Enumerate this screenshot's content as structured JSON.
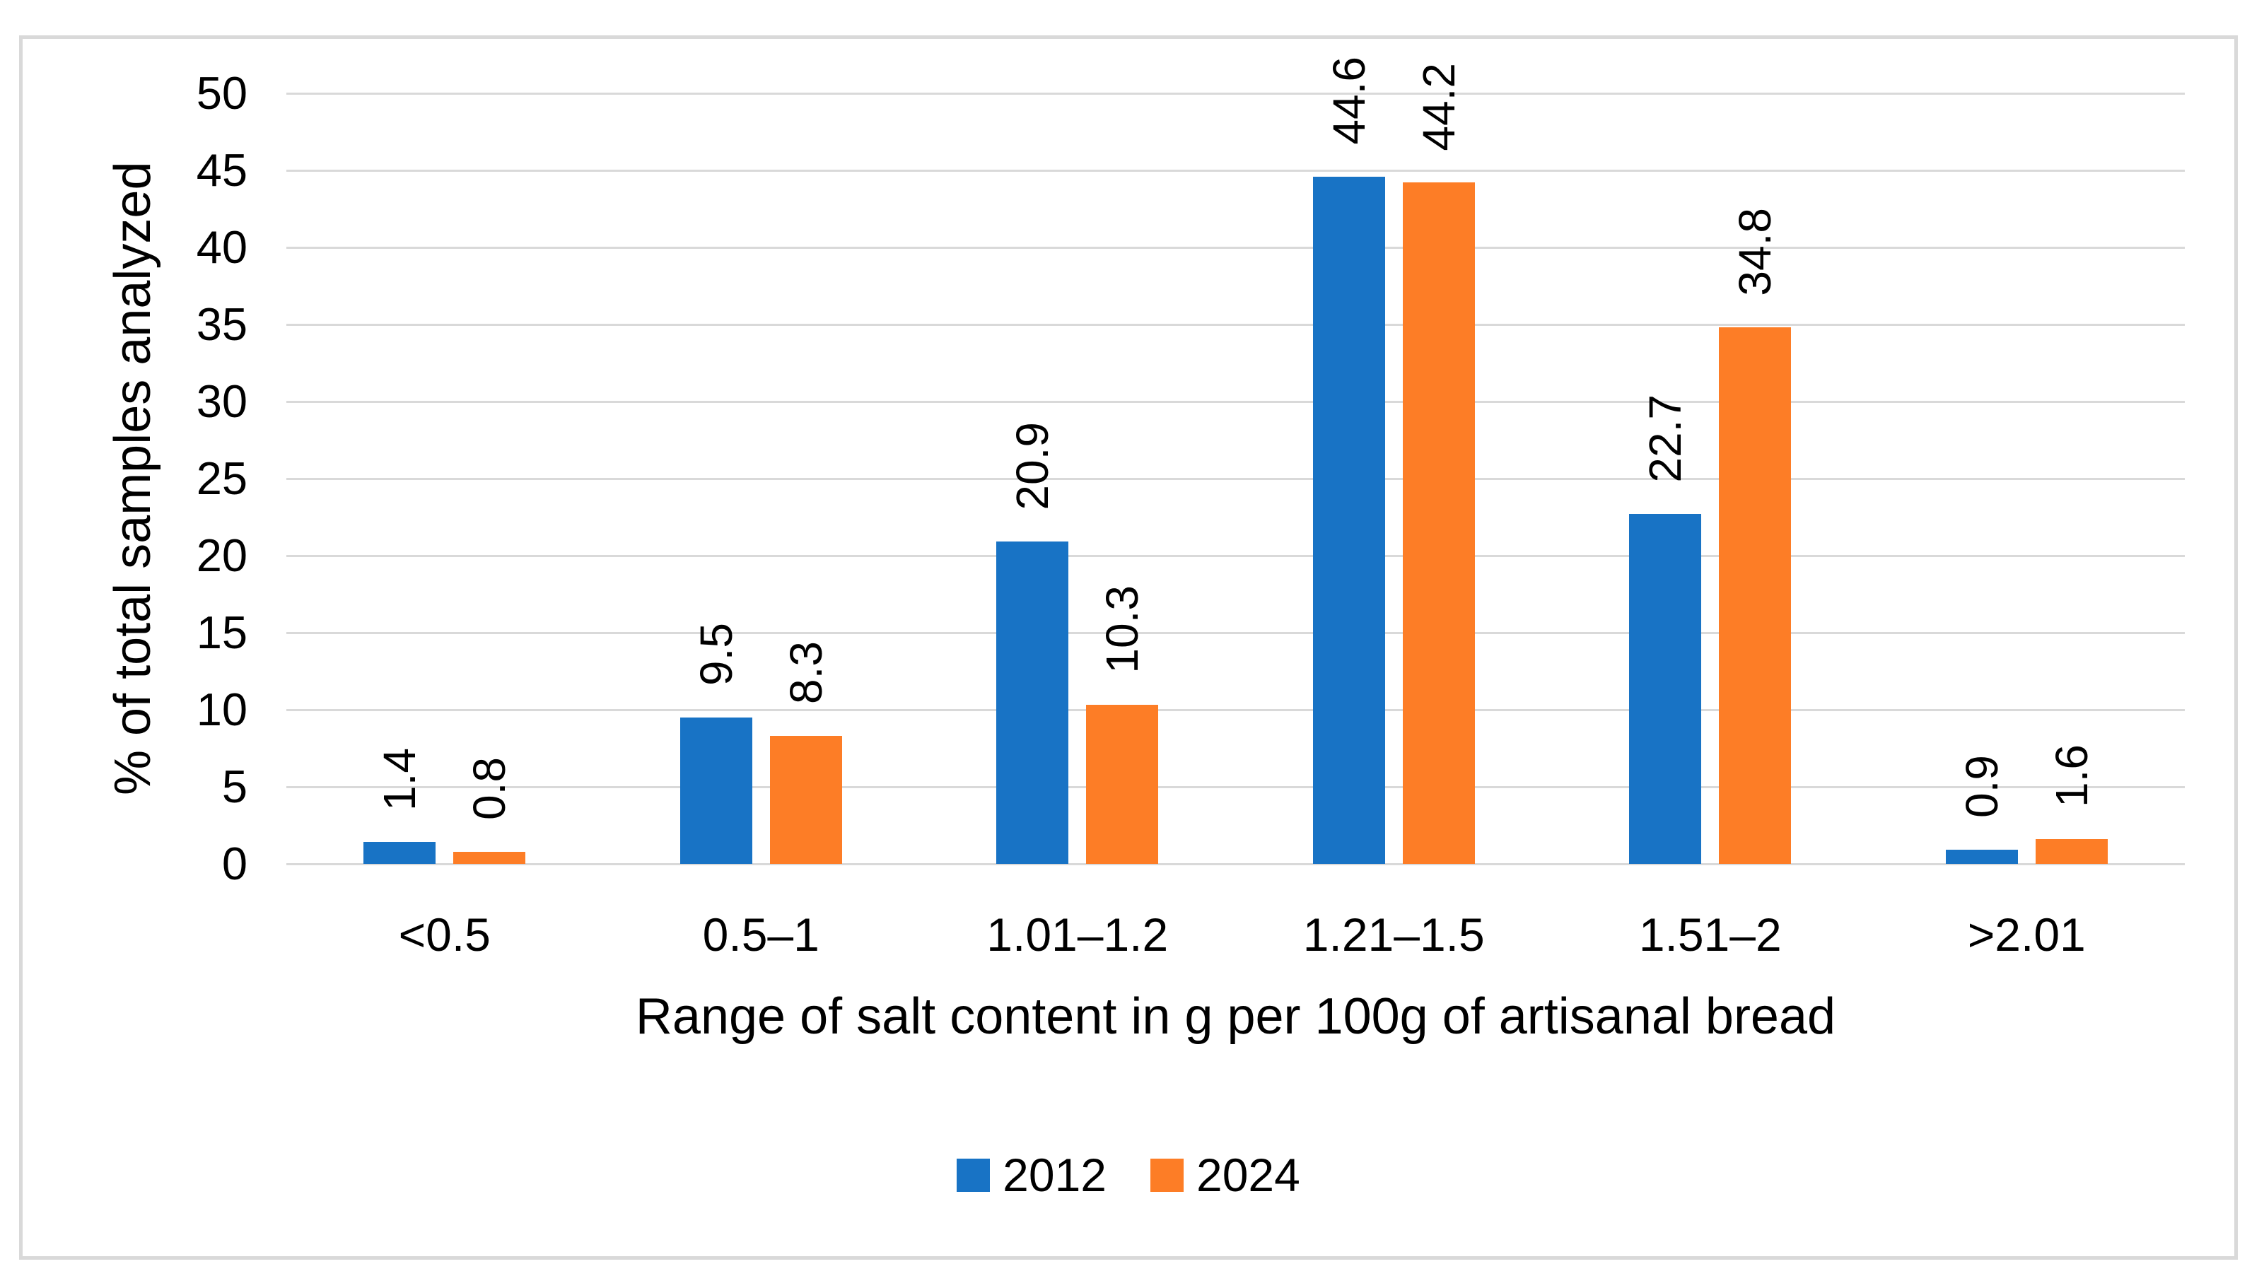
{
  "chart_data": {
    "type": "bar",
    "categories": [
      "<0.5",
      "0.5–1",
      "1.01–1.2",
      "1.21–1.5",
      "1.51–2",
      ">2.01"
    ],
    "series": [
      {
        "name": "2012",
        "color": "#1873C5",
        "values": [
          1.4,
          9.5,
          20.9,
          44.6,
          22.7,
          0.9
        ]
      },
      {
        "name": "2024",
        "color": "#FD7D26",
        "values": [
          0.8,
          8.3,
          10.3,
          44.2,
          34.8,
          1.6
        ]
      }
    ],
    "data_labels": {
      "2012": [
        "1.4",
        "9.5",
        "20.9",
        "44.6",
        "22.7",
        "0.9"
      ],
      "2024": [
        "0.8",
        "8.3",
        "10.3",
        "44.2",
        "34.8",
        "1.6"
      ]
    },
    "xlabel": "Range of salt content in g per 100g of artisanal bread",
    "ylabel": "% of total samples analyzed",
    "ylim": [
      0,
      50
    ],
    "yticks": [
      0,
      5,
      10,
      15,
      20,
      25,
      30,
      35,
      40,
      45,
      50
    ],
    "grid": true,
    "legend_position": "bottom",
    "label_orientation": "vertical-bottom-up",
    "colors": {
      "gridline": "#D9D9D9",
      "frame_border": "#D9D9D9",
      "text": "#000000",
      "background": "#FFFFFF"
    }
  }
}
